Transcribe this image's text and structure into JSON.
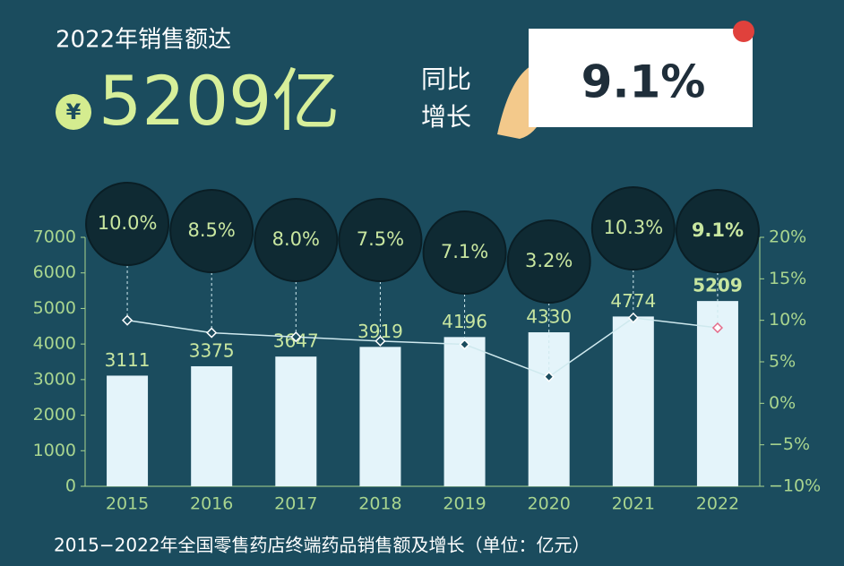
{
  "header": {
    "headline": "2022年销售额达",
    "currency": "¥",
    "amount": "5209亿",
    "growth_label_1": "同比",
    "growth_label_2": "增长",
    "growth_value": "9.1%"
  },
  "chart_data": {
    "type": "bar",
    "caption": "2015−2022年全国零售药店终端药品销售额及增长（单位：亿元）",
    "categories": [
      "2015",
      "2016",
      "2017",
      "2018",
      "2019",
      "2020",
      "2021",
      "2022"
    ],
    "series": [
      {
        "type": "bar",
        "color": "#e4f4fa",
        "values": [
          3111,
          3375,
          3647,
          3919,
          4196,
          4330,
          4774,
          5209
        ]
      },
      {
        "type": "line",
        "axis": "y2",
        "color": "#cfe9ee",
        "values": [
          10.0,
          8.5,
          8.0,
          7.5,
          7.1,
          3.2,
          10.3,
          9.1
        ],
        "value_labels": [
          "10.0%",
          "8.5%",
          "8.0%",
          "7.5%",
          "7.1%",
          "3.2%",
          "10.3%",
          "9.1%"
        ]
      }
    ],
    "ylim": [
      0,
      7000
    ],
    "yticks": [
      0,
      1000,
      2000,
      3000,
      4000,
      5000,
      6000,
      7000
    ],
    "y2lim": [
      -10,
      20
    ],
    "y2ticks": [
      {
        "value": -10,
        "label": "−10%"
      },
      {
        "value": -5,
        "label": "−5%"
      },
      {
        "value": 0,
        "label": "0%"
      },
      {
        "value": 5,
        "label": "5%"
      },
      {
        "value": 10,
        "label": "10%"
      },
      {
        "value": 15,
        "label": "15%"
      },
      {
        "value": 20,
        "label": "20%"
      }
    ],
    "grid": false
  }
}
